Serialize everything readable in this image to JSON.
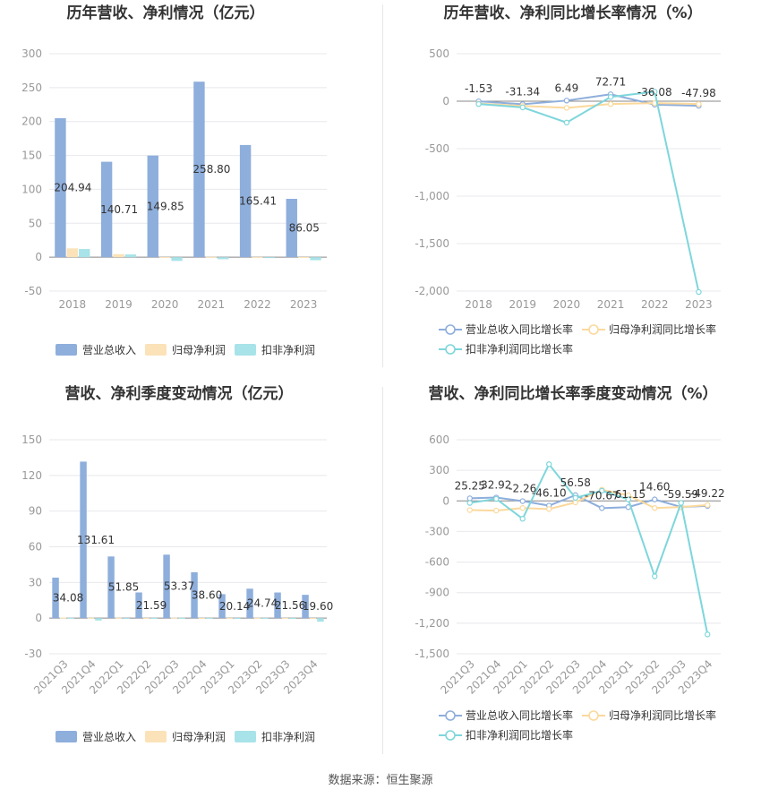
{
  "footer": {
    "source": "数据来源：恒生聚源"
  },
  "chart_data": [
    {
      "type": "bar",
      "title": "历年营收、净利情况（亿元）",
      "categories": [
        "2018",
        "2019",
        "2020",
        "2021",
        "2022",
        "2023"
      ],
      "ylim": [
        -50,
        300
      ],
      "yticks": [
        -50,
        0,
        50,
        100,
        150,
        200,
        250,
        300
      ],
      "grid": true,
      "legend_position": "bottom",
      "series": [
        {
          "name": "营业总收入",
          "color": "#8eaedc",
          "values": [
            204.94,
            140.71,
            149.85,
            258.8,
            165.41,
            86.05
          ],
          "labels": [
            "204.94",
            "140.71",
            "149.85",
            "258.80",
            "165.41",
            "86.05"
          ]
        },
        {
          "name": "归母净利润",
          "color": "#fbe2b8",
          "values": [
            13.0,
            4.5,
            0.2,
            0.5,
            0.3,
            0.2
          ]
        },
        {
          "name": "扣非净利润",
          "color": "#a7e3e8",
          "values": [
            12.0,
            4.0,
            -5.5,
            -3.0,
            -0.5,
            -4.5
          ]
        }
      ]
    },
    {
      "type": "line",
      "title": "历年营收、净利同比增长率情况（%）",
      "categories": [
        "2018",
        "2019",
        "2020",
        "2021",
        "2022",
        "2023"
      ],
      "ylim": [
        -2000,
        500
      ],
      "yticks": [
        -2000,
        -1500,
        -1000,
        -500,
        0,
        500
      ],
      "yticklabels": [
        "-2,000",
        "-1,500",
        "-1,000",
        "-500",
        "0",
        "500"
      ],
      "grid": true,
      "legend_position": "bottom",
      "series": [
        {
          "name": "营业总收入同比增长率",
          "color": "#8eaedc",
          "values": [
            -1.53,
            -31.34,
            6.49,
            72.71,
            -36.08,
            -47.98
          ],
          "labels": [
            "-1.53",
            "-31.34",
            "6.49",
            "72.71",
            "-36.08",
            "-47.98"
          ]
        },
        {
          "name": "归母净利润同比增长率",
          "color": "#fbd99c",
          "values": [
            -25,
            -50,
            -70,
            -30,
            -20,
            -30
          ]
        },
        {
          "name": "扣非净利润同比增长率",
          "color": "#7ed6db",
          "values": [
            -30,
            -65,
            -225,
            45,
            100,
            -2010
          ]
        }
      ]
    },
    {
      "type": "bar",
      "title": "营收、净利季度变动情况（亿元）",
      "categories": [
        "2021Q3",
        "2021Q4",
        "2022Q1",
        "2022Q2",
        "2022Q3",
        "2022Q4",
        "2023Q1",
        "2023Q2",
        "2023Q3",
        "2023Q4"
      ],
      "ylim": [
        -30,
        150
      ],
      "yticks": [
        -30,
        0,
        30,
        60,
        90,
        120,
        150
      ],
      "grid": true,
      "legend_position": "bottom",
      "series": [
        {
          "name": "营业总收入",
          "color": "#8eaedc",
          "values": [
            34.08,
            131.61,
            51.85,
            21.59,
            53.37,
            38.6,
            20.14,
            24.74,
            21.56,
            19.6
          ],
          "labels": [
            "34.08",
            "131.61",
            "51.85",
            "21.59",
            "53.37",
            "38.60",
            "20.14",
            "24.74",
            "21.56",
            "19.60"
          ]
        },
        {
          "name": "归母净利润",
          "color": "#fbe2b8",
          "values": [
            0.5,
            0.3,
            0.3,
            0.2,
            0.4,
            0.2,
            0.2,
            0.3,
            0.2,
            0.1
          ]
        },
        {
          "name": "扣非净利润",
          "color": "#a7e3e8",
          "values": [
            0.3,
            -2.0,
            0.1,
            0.2,
            0.3,
            0.2,
            0.1,
            0.2,
            0.1,
            -3.0
          ]
        }
      ]
    },
    {
      "type": "line",
      "title": "营收、净利同比增长率季度变动情况（%）",
      "categories": [
        "2021Q3",
        "2021Q4",
        "2022Q1",
        "2022Q2",
        "2022Q3",
        "2022Q4",
        "2023Q1",
        "2023Q2",
        "2023Q3",
        "2023Q4"
      ],
      "ylim": [
        -1500,
        600
      ],
      "yticks": [
        -1500,
        -1200,
        -900,
        -600,
        -300,
        0,
        300,
        600
      ],
      "yticklabels": [
        "-1,500",
        "-1,200",
        "-900",
        "-600",
        "-300",
        "0",
        "300",
        "600"
      ],
      "grid": true,
      "legend_position": "bottom",
      "series": [
        {
          "name": "营业总收入同比增长率",
          "color": "#8eaedc",
          "values": [
            25.25,
            32.92,
            -2.26,
            -46.1,
            56.58,
            -70.67,
            -61.15,
            14.6,
            -59.59,
            -49.22
          ],
          "labels": [
            "25.25",
            "32.92",
            "-2.26",
            "-46.10",
            "56.58",
            "-70.67",
            "-61.15",
            "14.60",
            "-59.59",
            "-49.22"
          ]
        },
        {
          "name": "归母净利润同比增长率",
          "color": "#fbd99c",
          "values": [
            -90,
            -95,
            -70,
            -80,
            -15,
            110,
            55,
            -70,
            -60,
            -40
          ]
        },
        {
          "name": "扣非净利润同比增长率",
          "color": "#7ed6db",
          "values": [
            -20,
            20,
            -175,
            360,
            30,
            100,
            15,
            -740,
            -20,
            -1310
          ]
        }
      ]
    }
  ]
}
